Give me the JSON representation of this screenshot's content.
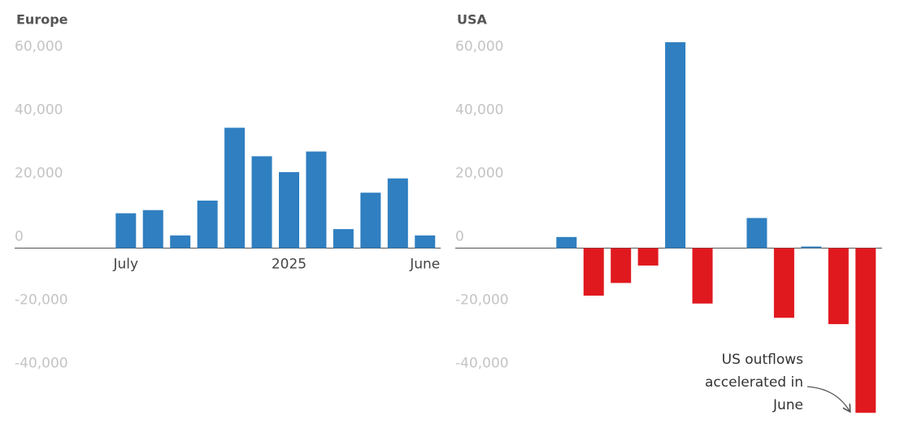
{
  "chart_data": [
    {
      "type": "bar",
      "title": "Europe",
      "categories": [
        null,
        null,
        null,
        null,
        "July",
        null,
        null,
        null,
        null,
        null,
        "2025",
        null,
        null,
        null,
        null,
        "June"
      ],
      "values": [
        null,
        null,
        null,
        null,
        11000,
        12000,
        4000,
        15000,
        38000,
        29000,
        24000,
        30500,
        6000,
        17500,
        22000,
        4000
      ],
      "positive_color": "#2f7fc1",
      "negative_color": "#e0191f",
      "ylim": [
        -55000,
        65000
      ],
      "yticks": [
        {
          "value": -40000,
          "label": "-40,000"
        },
        {
          "value": -20000,
          "label": "-20,000"
        },
        0,
        {
          "value": 20000,
          "label": "20,000"
        },
        {
          "value": 40000,
          "label": "40,000"
        },
        {
          "value": 60000,
          "label": "60,000"
        }
      ],
      "grid": false
    },
    {
      "type": "bar",
      "title": "USA",
      "categories": [
        null,
        null,
        null,
        null,
        null,
        null,
        null,
        null,
        null,
        null,
        null,
        null,
        null,
        null,
        null,
        null
      ],
      "values": [
        null,
        null,
        null,
        null,
        3500,
        -15000,
        -11000,
        -5500,
        65000,
        -17500,
        null,
        9500,
        -22000,
        500,
        -24000,
        -52000
      ],
      "positive_color": "#2f7fc1",
      "negative_color": "#e0191f",
      "ylim": [
        -55000,
        65000
      ],
      "yticks": [
        {
          "value": -40000,
          "label": "-40,000"
        },
        {
          "value": -20000,
          "label": "-20,000"
        },
        0,
        {
          "value": 20000,
          "label": "20,000"
        },
        {
          "value": 40000,
          "label": "40,000"
        },
        {
          "value": 60000,
          "label": "60,000"
        }
      ],
      "grid": false,
      "annotation": [
        "US outflows",
        "accelerated in",
        "June"
      ]
    }
  ]
}
